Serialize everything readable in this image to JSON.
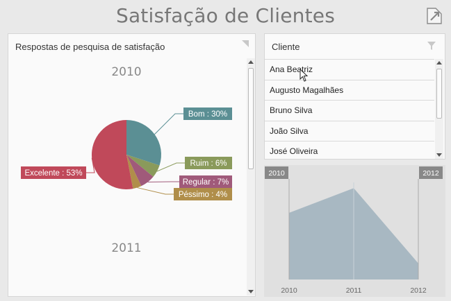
{
  "header": {
    "title": "Satisfação de Clientes",
    "export_icon": "export-icon"
  },
  "pie_panel": {
    "caption": "Respostas de pesquisa de satisfação",
    "year_top": "2010",
    "year_bottom": "2011",
    "slices": [
      {
        "label": "Bom : 30%",
        "value": 30,
        "color": "#5b8f94"
      },
      {
        "label": "Ruim : 6%",
        "value": 6,
        "color": "#8a9a5b"
      },
      {
        "label": "Regular : 7%",
        "value": 7,
        "color": "#a05a7a"
      },
      {
        "label": "Péssimo : 4%",
        "value": 4,
        "color": "#b08e4a"
      },
      {
        "label": "Excelente : 53%",
        "value": 53,
        "color": "#c0495a"
      }
    ]
  },
  "client_panel": {
    "caption": "Cliente",
    "items": [
      "Ana Beatriz",
      "Augusto Magalhães",
      "Bruno Silva",
      "João Silva",
      "José Oliveira"
    ]
  },
  "range": {
    "start_label": "2010",
    "end_label": "2012",
    "x_labels": [
      "2010",
      "2011",
      "2012"
    ],
    "values": [
      0.62,
      0.85,
      0.15
    ],
    "fill": "#a8b8c2"
  }
}
